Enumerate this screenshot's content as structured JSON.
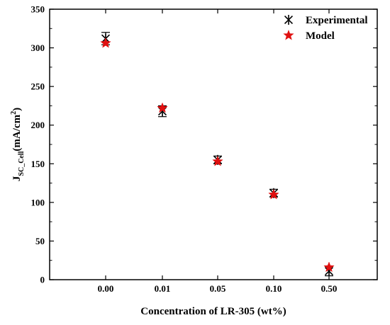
{
  "chart_data": {
    "type": "scatter",
    "xlabel": "Concentration of LR-305 (wt%)",
    "ylabel": {
      "main": "J",
      "subscript": "SC_Cell",
      "unit_prefix": "(mA/cm",
      "superscript": "2",
      "unit_suffix": ")"
    },
    "categories": [
      "0.00",
      "0.01",
      "0.05",
      "0.10",
      "0.50"
    ],
    "ylim": [
      0,
      350
    ],
    "yticks": [
      0,
      50,
      100,
      150,
      200,
      250,
      300,
      350
    ],
    "ytick_labels": [
      "0",
      "50",
      "100",
      "150",
      "200",
      "250",
      "300",
      "350"
    ],
    "grid": false,
    "legend_position": "top-right",
    "series": [
      {
        "name": "Experimental",
        "marker": "asterisk",
        "color": "#000000",
        "values": [
          312,
          218,
          155,
          112,
          11
        ],
        "errors": [
          8,
          7,
          5,
          5,
          6
        ]
      },
      {
        "name": "Model",
        "marker": "star",
        "color": "#e01010",
        "values": [
          306,
          222,
          153,
          110,
          16
        ]
      }
    ]
  }
}
